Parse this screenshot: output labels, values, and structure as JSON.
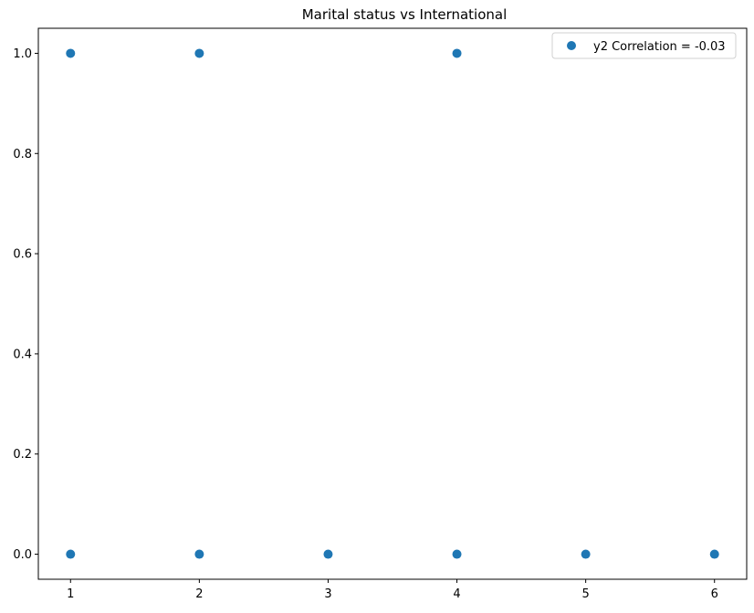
{
  "chart_data": {
    "type": "scatter",
    "title": "Marital status vs International",
    "xlabel": "",
    "ylabel": "",
    "xlim": [
      0.75,
      6.25
    ],
    "ylim": [
      -0.05,
      1.05
    ],
    "xticks": [
      1,
      2,
      3,
      4,
      5,
      6
    ],
    "xtick_labels": [
      "1",
      "2",
      "3",
      "4",
      "5",
      "6"
    ],
    "yticks": [
      0.0,
      0.2,
      0.4,
      0.6,
      0.8,
      1.0
    ],
    "ytick_labels": [
      "0.0",
      "0.2",
      "0.4",
      "0.6",
      "0.8",
      "1.0"
    ],
    "grid": false,
    "legend_position": "top-right",
    "series": [
      {
        "name": "y2 Correlation = -0.03",
        "color": "#1f77b4",
        "points": [
          {
            "x": 1,
            "y": 1
          },
          {
            "x": 2,
            "y": 1
          },
          {
            "x": 4,
            "y": 1
          },
          {
            "x": 1,
            "y": 0
          },
          {
            "x": 2,
            "y": 0
          },
          {
            "x": 3,
            "y": 0
          },
          {
            "x": 4,
            "y": 0
          },
          {
            "x": 5,
            "y": 0
          },
          {
            "x": 6,
            "y": 0
          }
        ]
      }
    ]
  }
}
